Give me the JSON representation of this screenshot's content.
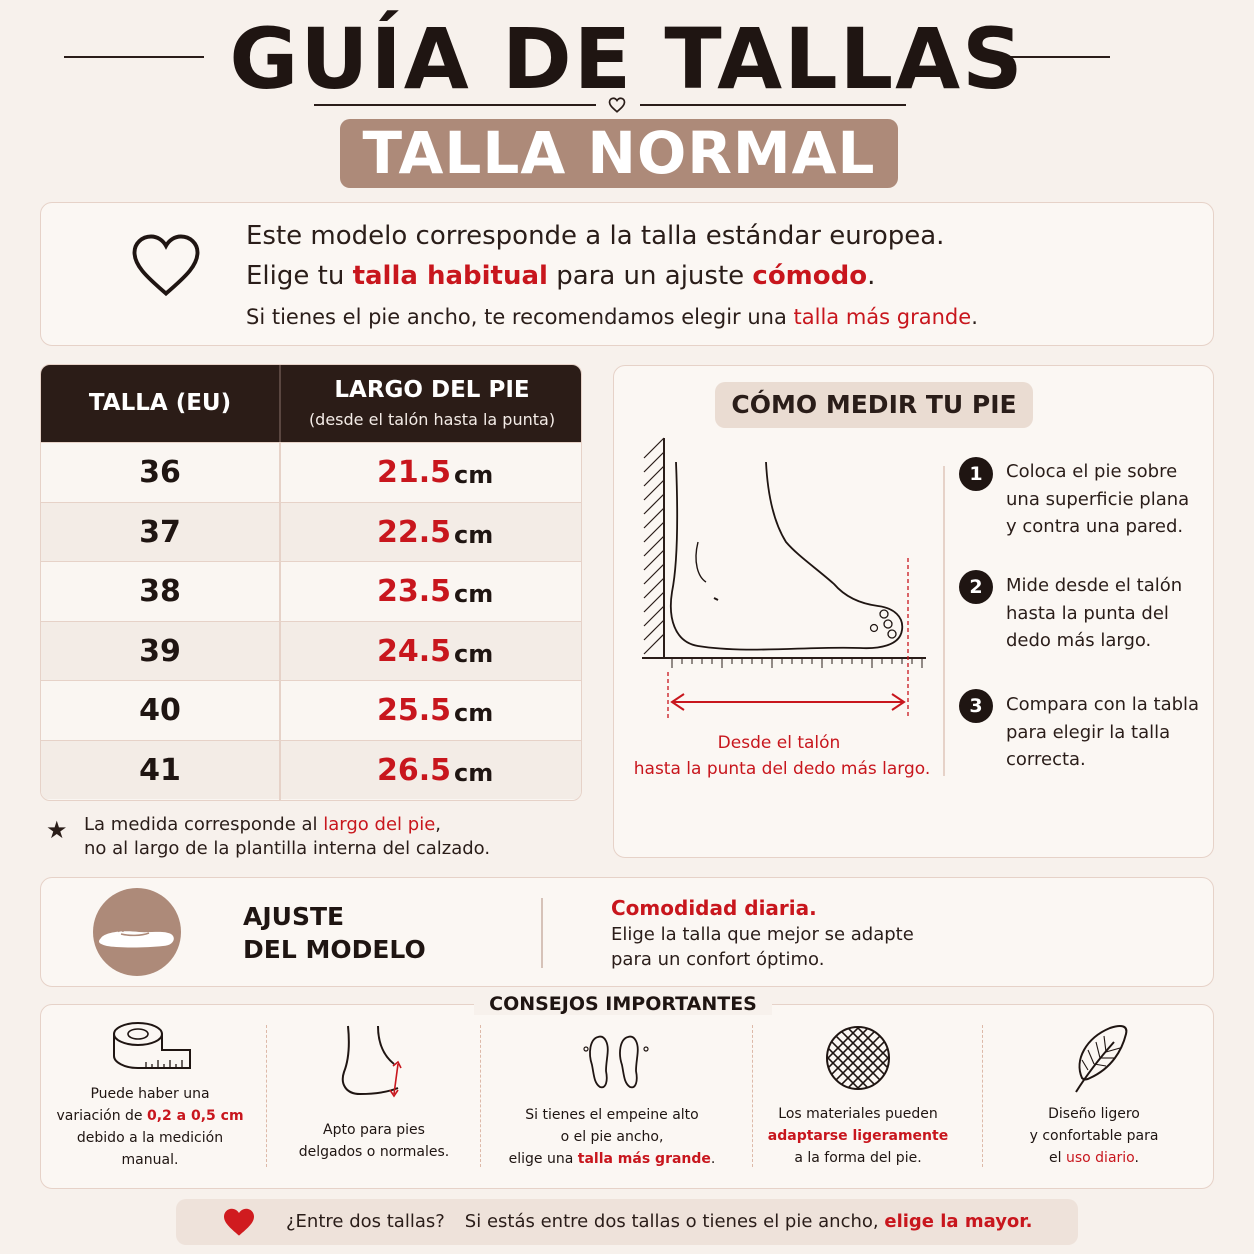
{
  "header": {
    "title": "GUÍA DE TALLAS",
    "subtitle": "TALLA NORMAL"
  },
  "intro": {
    "line1": "Este modelo corresponde a la talla estándar europea.",
    "line2_a": "Elige tu ",
    "line2_b": "talla habitual",
    "line2_c": " para un ajuste ",
    "line2_d": "cómodo",
    "line2_e": ".",
    "line3_a": "Si tienes el pie ancho, te recomendamos elegir una ",
    "line3_b": "talla más grande",
    "line3_c": "."
  },
  "table": {
    "header_size": "TALLA (EU)",
    "header_length": "LARGO DEL PIE",
    "header_length_sub": "(desde el talón hasta la punta)",
    "unit": "cm",
    "rows": [
      {
        "size": "36",
        "length": "21.5"
      },
      {
        "size": "37",
        "length": "22.5"
      },
      {
        "size": "38",
        "length": "23.5"
      },
      {
        "size": "39",
        "length": "24.5"
      },
      {
        "size": "40",
        "length": "25.5"
      },
      {
        "size": "41",
        "length": "26.5"
      }
    ],
    "note1_a": "La medida corresponde al ",
    "note1_b": "largo del pie",
    "note1_c": ",",
    "note2": "no al largo de la plantilla interna del calzado."
  },
  "measure": {
    "title": "CÓMO MEDIR TU PIE",
    "caption1": "Desde el talón",
    "caption2": "hasta la punta del dedo más largo.",
    "steps": [
      {
        "num": "1",
        "lines": [
          "Coloca el pie sobre",
          "una superficie plana",
          "y contra una pared."
        ]
      },
      {
        "num": "2",
        "lines": [
          "Mide desde el talón",
          "hasta la punta del",
          "dedo más largo."
        ]
      },
      {
        "num": "3",
        "lines": [
          "Compara con la tabla",
          "para elegir la talla",
          "correcta."
        ]
      }
    ]
  },
  "fit": {
    "title1": "AJUSTE",
    "title2": "DEL MODELO",
    "headline": "Comodidad diaria.",
    "text1": "Elige la talla que mejor se adapte",
    "text2": "para un confort óptimo."
  },
  "tips": {
    "title": "CONSEJOS IMPORTANTES",
    "tip1": {
      "l1": "Puede haber una",
      "l2a": "variación de ",
      "l2b": "0,2 a 0,5 cm",
      "l3": "debido a la medición",
      "l4": "manual."
    },
    "tip2": {
      "l1": "Apto para pies",
      "l2": "delgados o normales."
    },
    "tip3": {
      "l1": "Si tienes el empeine alto",
      "l2": "o el pie ancho,",
      "l3a": "elige una ",
      "l3b": "talla más grande",
      "l3c": "."
    },
    "tip4": {
      "l1": "Los materiales pueden",
      "l2": "adaptarse ligeramente",
      "l3": "a la forma del pie."
    },
    "tip5": {
      "l1": "Diseño ligero",
      "l2": "y confortable para",
      "l3a": "el ",
      "l3b": "uso diario",
      "l3c": "."
    }
  },
  "footer": {
    "question": "¿Entre dos tallas?",
    "text_a": "Si estás entre dos tallas o tienes el pie ancho, ",
    "text_b": "elige la mayor."
  },
  "colors": {
    "accent_red": "#c8161d",
    "brand_brown": "#ad8a79",
    "dark": "#2b1c17"
  }
}
